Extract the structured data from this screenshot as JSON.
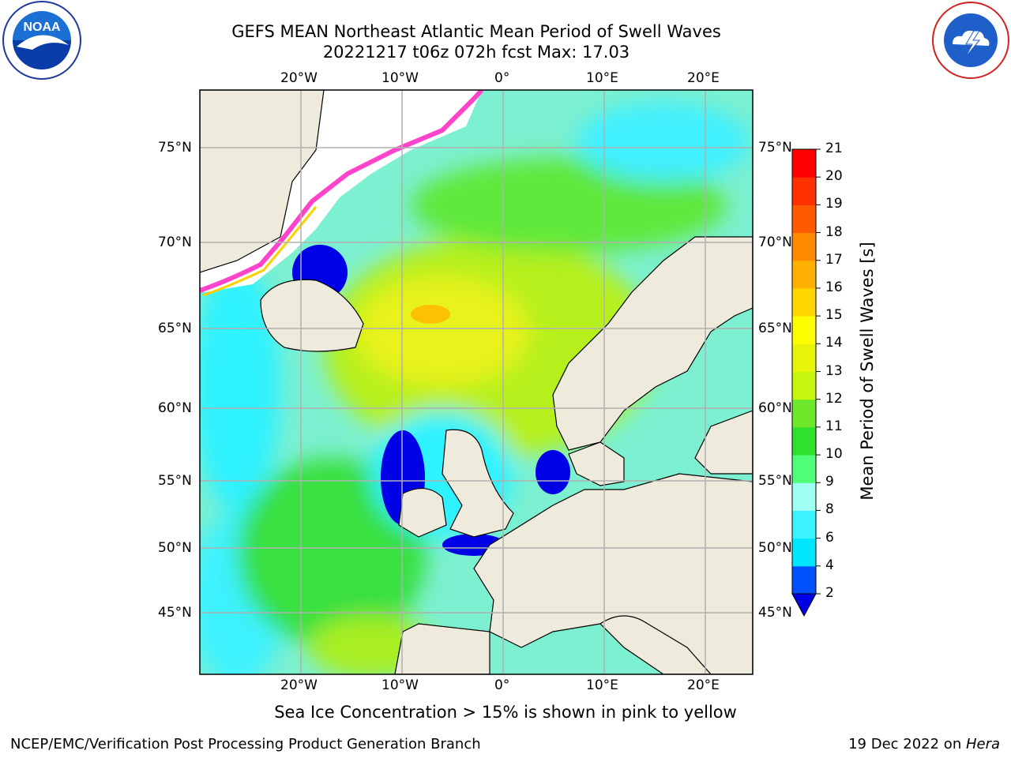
{
  "title_line1": "GEFS MEAN Northeast Atlantic Mean Period of Swell Waves",
  "title_line2": "20221217 t06z 072h fcst   Max: 17.03",
  "subtitle": "Sea Ice Concentration > 15% is shown in pink to yellow",
  "footer_left": "NCEP/EMC/Verification Post Processing Product Generation Branch",
  "footer_right_date": "19 Dec 2022 on ",
  "footer_right_machine": "Hera",
  "logos": {
    "left_icon": "noaa-logo",
    "right_icon": "national-weather-service-logo"
  },
  "map": {
    "lon_labels": [
      "20°W",
      "10°W",
      "0°",
      "10°E",
      "20°E"
    ],
    "lat_labels": [
      "75°N",
      "70°N",
      "65°N",
      "60°N",
      "55°N",
      "50°N",
      "45°N"
    ],
    "colors": {
      "land": "#efebdc",
      "ocean_fill": "#7cf0d0",
      "sea_ice": "#ffffff",
      "grid": "#b0b0b0"
    }
  },
  "colorbar": {
    "label": "Mean Period of Swell Waves [s]",
    "ticks": [
      "2",
      "4",
      "6",
      "8",
      "9",
      "10",
      "11",
      "12",
      "13",
      "14",
      "15",
      "16",
      "17",
      "18",
      "19",
      "20",
      "21"
    ],
    "colors": [
      "#0050ff",
      "#00e6ff",
      "#3cf2ff",
      "#9ffff2",
      "#50ff78",
      "#2fe02c",
      "#6ee629",
      "#c6f70e",
      "#e6f50a",
      "#ffff00",
      "#ffd600",
      "#ffb000",
      "#ff8a00",
      "#ff5a00",
      "#ff3000",
      "#ff0000"
    ],
    "extend_color": "#0000e6"
  }
}
